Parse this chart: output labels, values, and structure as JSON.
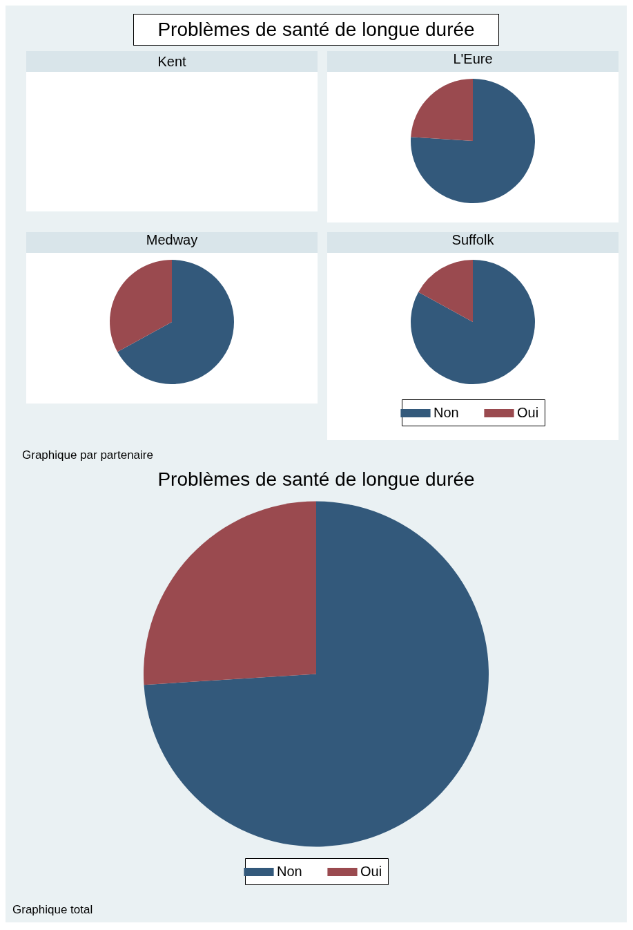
{
  "chart_data": [
    {
      "type": "other",
      "title": "Problèmes de santé de longue durée"
    },
    {
      "type": "other",
      "title": "Kent"
    },
    {
      "type": "pie",
      "title": "L'Eure",
      "values": [
        76,
        24
      ],
      "colors": [
        "#33597b",
        "#9a4a4f"
      ]
    },
    {
      "type": "pie",
      "title": "Medway",
      "values": [
        67,
        33
      ],
      "colors": [
        "#33597b",
        "#9a4a4f"
      ]
    },
    {
      "type": "pie",
      "title": "Suffolk",
      "categories": [
        "Non",
        "Oui"
      ],
      "values": [
        83,
        17
      ],
      "colors": [
        "#33597b",
        "#9a4a4f"
      ],
      "legend": "bottom"
    },
    {
      "type": "other",
      "annotations": [
        "Graphique par partenaire"
      ]
    },
    {
      "type": "pie",
      "title": "Problèmes de santé de longue durée",
      "categories": [
        "Non",
        "Oui"
      ],
      "values": [
        74,
        26
      ],
      "colors": [
        "#33597b",
        "#9a4a4f"
      ],
      "legend": "bottom",
      "annotations": [
        "Graphique total"
      ]
    }
  ]
}
